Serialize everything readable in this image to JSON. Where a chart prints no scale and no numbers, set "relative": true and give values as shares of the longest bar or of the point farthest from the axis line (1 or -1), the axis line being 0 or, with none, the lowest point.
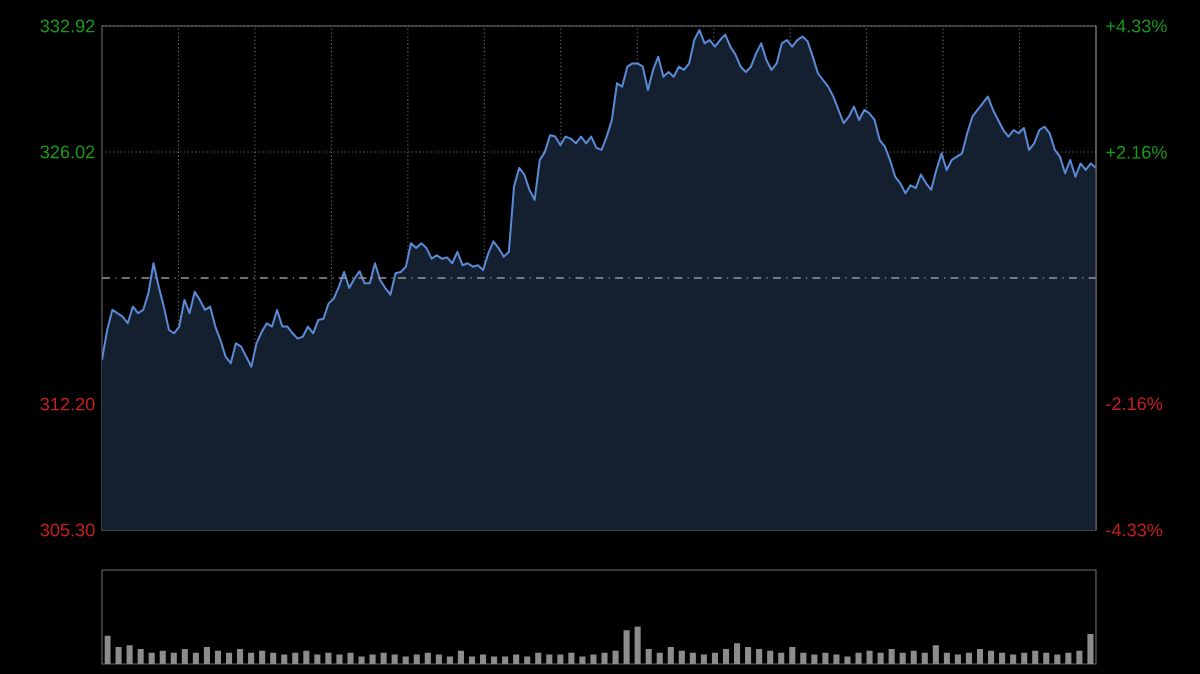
{
  "chart_data": [
    {
      "type": "area",
      "categories": [
        null,
        null,
        null,
        null,
        null,
        null,
        null,
        null,
        null,
        null,
        null,
        null,
        null,
        null,
        null,
        null,
        null,
        null,
        null,
        null,
        null,
        null,
        null,
        null,
        null,
        null,
        null,
        null,
        null,
        null,
        null,
        null,
        null,
        null,
        null,
        null,
        null,
        null,
        null,
        null,
        null,
        null,
        null,
        null,
        null,
        null,
        null,
        null,
        null,
        null,
        null,
        null,
        null,
        null,
        null,
        null,
        null,
        null,
        null,
        null,
        null,
        null,
        null,
        null,
        null,
        null,
        null,
        null,
        null,
        null,
        null,
        null,
        null,
        null,
        null,
        null,
        null,
        null,
        null,
        null,
        null,
        null,
        null,
        null,
        null,
        null,
        null,
        null,
        null,
        null,
        null,
        null,
        null,
        null,
        null,
        null,
        null,
        null,
        null,
        null,
        null,
        null,
        null,
        null,
        null,
        null,
        null,
        null,
        null,
        null,
        null,
        null,
        null,
        null,
        null,
        null,
        null,
        null,
        null,
        null,
        null,
        null,
        null,
        null,
        null,
        null,
        null,
        null,
        null,
        null,
        null,
        null,
        null,
        null,
        null,
        null,
        null,
        null,
        null,
        null,
        null,
        null,
        null,
        null,
        null,
        null,
        null,
        null,
        null,
        null,
        null,
        null,
        null,
        null,
        null,
        null,
        null,
        null,
        null,
        null,
        null,
        null,
        null,
        null,
        null,
        null,
        null,
        null,
        null,
        null,
        null,
        null,
        null,
        null,
        null,
        null,
        null,
        null,
        null,
        null,
        null,
        null,
        null,
        null,
        null,
        null,
        null,
        null,
        null,
        null,
        null,
        null,
        null,
        null
      ],
      "series": [
        {
          "color": "#5b8bd6",
          "values": [
            314.62,
            316.26,
            317.36,
            317.18,
            316.99,
            316.63,
            317.54,
            317.18,
            317.36,
            318.27,
            319.92,
            318.64,
            317.54,
            316.26,
            316.08,
            316.45,
            317.91,
            317.18,
            318.35,
            317.91,
            317.36,
            317.54,
            316.45,
            315.71,
            314.8,
            314.44,
            315.53,
            315.35,
            314.8,
            314.25,
            315.53,
            316.15,
            316.63,
            316.45,
            317.36,
            316.45,
            316.45,
            316.08,
            315.79,
            315.9,
            316.45,
            316.08,
            316.81,
            316.88,
            317.72,
            317.98,
            318.64,
            319.44,
            318.56,
            319.07,
            319.48,
            318.82,
            318.82,
            319.92,
            319.0,
            318.56,
            318.2,
            319.37,
            319.44,
            319.73,
            321.01,
            320.75,
            321.01,
            320.75,
            320.17,
            320.35,
            320.17,
            320.24,
            319.92,
            320.54,
            319.81,
            319.92,
            319.73,
            319.81,
            319.55,
            320.46,
            321.12,
            320.75,
            320.28,
            320.54,
            324.12,
            325.14,
            324.78,
            323.94,
            323.39,
            325.58,
            326.02,
            326.93,
            326.86,
            326.38,
            326.86,
            326.75,
            326.49,
            326.86,
            326.49,
            326.86,
            326.24,
            326.13,
            326.86,
            327.77,
            329.78,
            329.6,
            330.69,
            330.87,
            330.87,
            330.69,
            329.41,
            330.51,
            331.24,
            330.14,
            330.4,
            330.14,
            330.69,
            330.51,
            330.87,
            332.15,
            332.7,
            331.97,
            332.15,
            331.79,
            332.15,
            332.45,
            331.79,
            331.35,
            330.69,
            330.4,
            330.69,
            331.42,
            331.97,
            331.06,
            330.51,
            330.87,
            331.97,
            332.15,
            331.79,
            332.15,
            332.34,
            332.08,
            331.24,
            330.33,
            329.96,
            329.6,
            329.05,
            328.32,
            327.59,
            327.95,
            328.5,
            327.77,
            328.32,
            328.13,
            327.77,
            326.67,
            326.31,
            325.58,
            324.66,
            324.3,
            323.75,
            324.19,
            324.04,
            324.78,
            324.3,
            323.94,
            325.03,
            325.94,
            325.03,
            325.58,
            325.76,
            325.94,
            327.04,
            327.95,
            328.32,
            328.68,
            329.05,
            328.32,
            327.77,
            327.22,
            326.86,
            327.22,
            327.04,
            327.33,
            326.13,
            326.49,
            327.22,
            327.4,
            327.04,
            326.13,
            325.76,
            324.85,
            325.58,
            324.66,
            325.39,
            325.03,
            325.39,
            325.14
          ]
        }
      ],
      "ylim": [
        305.3,
        332.92
      ],
      "yticks": [
        {
          "value": 305.3,
          "label": "305.30"
        },
        {
          "value": 312.2,
          "label": "312.20"
        },
        {
          "value": 326.02,
          "label": "326.02"
        },
        {
          "value": 332.92,
          "label": "332.92"
        }
      ],
      "y2lim": [
        -4.33,
        4.33
      ],
      "y2ticks": [
        {
          "value": -4.33,
          "label": "-4.33%"
        },
        {
          "value": -2.16,
          "label": "-2.16%"
        },
        {
          "value": 2.16,
          "label": "+2.16%"
        },
        {
          "value": 4.33,
          "label": "+4.33%"
        }
      ],
      "ref_lines": [
        {
          "axis": "y",
          "value": 319.11
        }
      ],
      "grid": true,
      "marker": "none",
      "line_style": "solid"
    },
    {
      "type": "bar",
      "relative": true,
      "categories": [
        null,
        null,
        null,
        null,
        null,
        null,
        null,
        null,
        null,
        null,
        null,
        null,
        null,
        null,
        null,
        null,
        null,
        null,
        null,
        null,
        null,
        null,
        null,
        null,
        null,
        null,
        null,
        null,
        null,
        null,
        null,
        null,
        null,
        null,
        null,
        null,
        null,
        null,
        null,
        null,
        null,
        null,
        null,
        null,
        null,
        null,
        null,
        null,
        null,
        null,
        null,
        null,
        null,
        null,
        null,
        null,
        null,
        null,
        null,
        null,
        null,
        null,
        null,
        null,
        null,
        null,
        null,
        null,
        null,
        null,
        null,
        null,
        null,
        null,
        null,
        null,
        null,
        null,
        null,
        null,
        null,
        null,
        null,
        null,
        null,
        null,
        null,
        null,
        null,
        null
      ],
      "color": "#8c8c8c",
      "values": [
        0.75,
        0.45,
        0.5,
        0.4,
        0.3,
        0.35,
        0.3,
        0.4,
        0.3,
        0.45,
        0.35,
        0.3,
        0.4,
        0.3,
        0.35,
        0.3,
        0.25,
        0.3,
        0.35,
        0.25,
        0.3,
        0.25,
        0.3,
        0.2,
        0.25,
        0.3,
        0.25,
        0.2,
        0.25,
        0.3,
        0.25,
        0.2,
        0.35,
        0.2,
        0.25,
        0.2,
        0.2,
        0.25,
        0.2,
        0.3,
        0.25,
        0.25,
        0.3,
        0.2,
        0.25,
        0.3,
        0.35,
        0.9,
        1.0,
        0.4,
        0.3,
        0.45,
        0.35,
        0.3,
        0.25,
        0.3,
        0.4,
        0.55,
        0.45,
        0.4,
        0.35,
        0.3,
        0.45,
        0.3,
        0.25,
        0.3,
        0.25,
        0.2,
        0.3,
        0.35,
        0.3,
        0.4,
        0.3,
        0.35,
        0.3,
        0.5,
        0.3,
        0.25,
        0.3,
        0.4,
        0.35,
        0.3,
        0.25,
        0.3,
        0.35,
        0.3,
        0.25,
        0.3,
        0.35,
        0.8
      ]
    }
  ]
}
